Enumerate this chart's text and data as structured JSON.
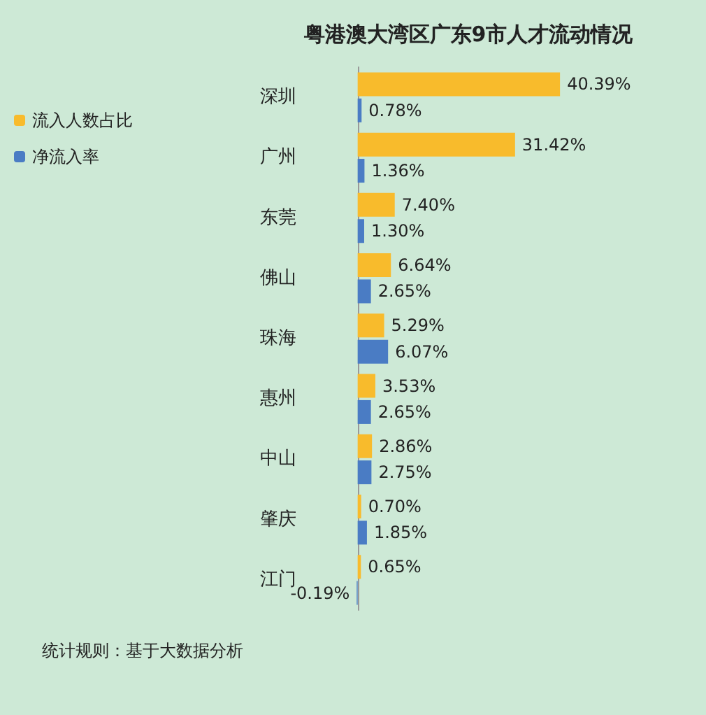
{
  "chart_data": {
    "type": "bar",
    "orientation": "horizontal",
    "title": "粤港澳大湾区广东9市人才流动情况",
    "categories": [
      "深圳",
      "广州",
      "东莞",
      "佛山",
      "珠海",
      "惠州",
      "中山",
      "肇庆",
      "江门"
    ],
    "series": [
      {
        "name": "流入人数占比",
        "color": "#f8bb2c",
        "values": [
          40.39,
          31.42,
          7.4,
          6.64,
          5.29,
          3.53,
          2.86,
          0.7,
          0.65
        ],
        "value_labels": [
          "40.39%",
          "31.42%",
          "7.40%",
          "6.64%",
          "5.29%",
          "3.53%",
          "2.86%",
          "0.70%",
          "0.65%"
        ]
      },
      {
        "name": "净流入率",
        "color": "#4a7cc4",
        "values": [
          0.78,
          1.36,
          1.3,
          2.65,
          6.07,
          2.65,
          2.75,
          1.85,
          -0.19
        ],
        "value_labels": [
          "0.78%",
          "1.36%",
          "1.30%",
          "2.65%",
          "6.07%",
          "2.65%",
          "2.75%",
          "1.85%",
          "-0.19%"
        ]
      }
    ],
    "legend": "top left",
    "grid": false,
    "annotations": [
      "统计规则：基于大数据分析"
    ]
  }
}
